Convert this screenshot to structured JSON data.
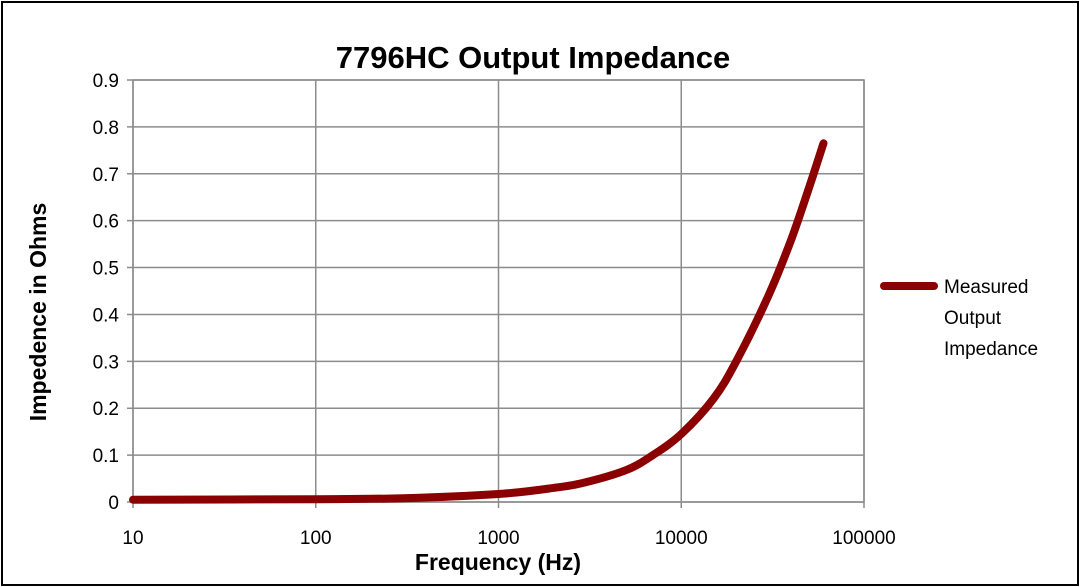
{
  "chart_data": {
    "type": "line",
    "title": "7796HC Output Impedance",
    "xlabel": "Frequency (Hz)",
    "ylabel": "Impedence in Ohms",
    "x_scale": "log",
    "xlim": [
      10,
      100000
    ],
    "ylim": [
      0,
      0.9
    ],
    "x_ticks": [
      "10",
      "100",
      "1000",
      "10000",
      "100000"
    ],
    "y_ticks": [
      "0",
      "0.1",
      "0.2",
      "0.3",
      "0.4",
      "0.5",
      "0.6",
      "0.7",
      "0.8",
      "0.9"
    ],
    "grid": true,
    "legend_position": "right",
    "series": [
      {
        "name": "Measured Output Impedance",
        "legend_lines": [
          "Measured",
          "Output",
          "Impedance"
        ],
        "color": "#8B0000",
        "x": [
          10,
          100,
          300,
          1000,
          2000,
          3000,
          5000,
          7000,
          10000,
          15000,
          20000,
          30000,
          40000,
          50000,
          60000
        ],
        "y": [
          0.005,
          0.006,
          0.008,
          0.017,
          0.03,
          0.042,
          0.068,
          0.1,
          0.145,
          0.22,
          0.3,
          0.44,
          0.56,
          0.67,
          0.765
        ]
      }
    ]
  }
}
